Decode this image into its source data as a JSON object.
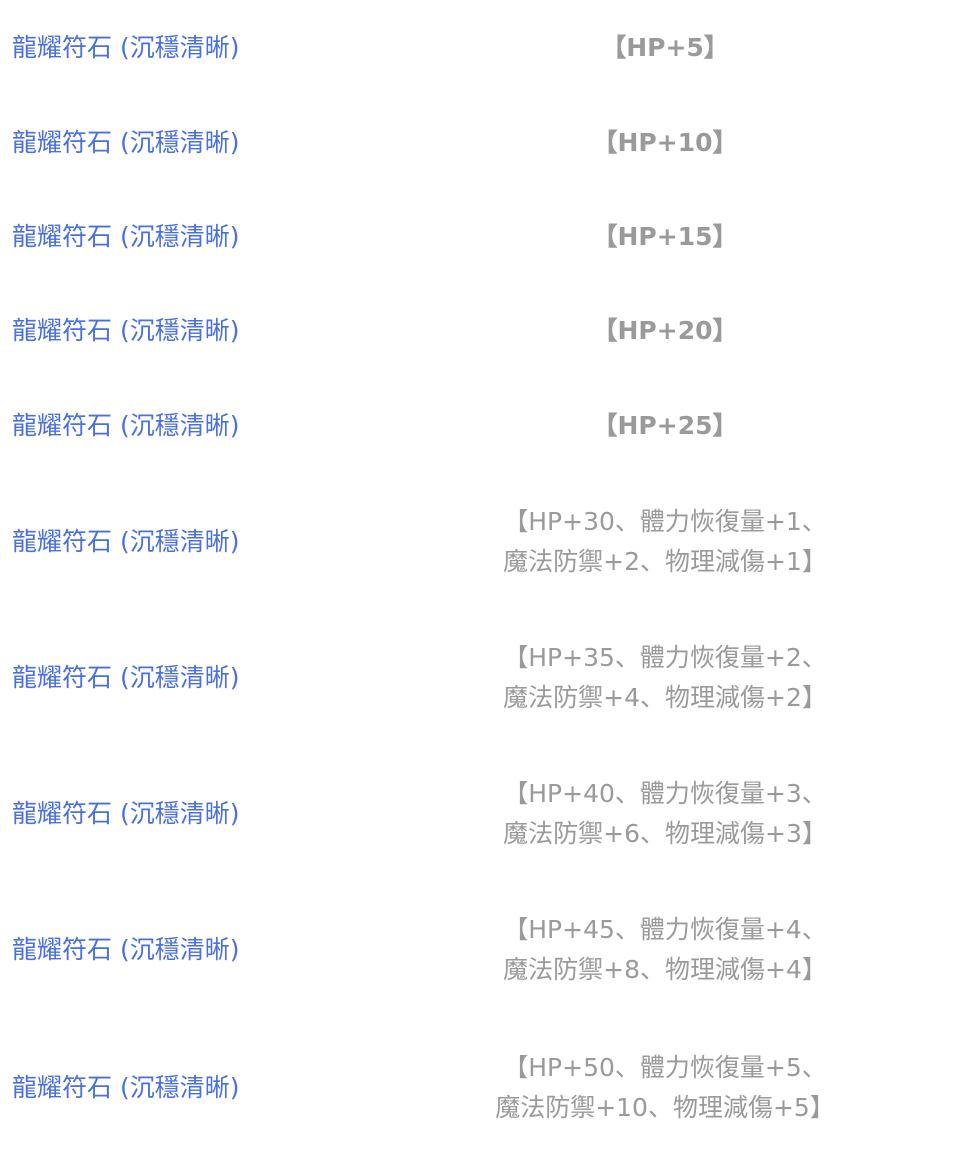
{
  "rows": [
    {
      "name": "龍耀符石 (沉穩清晰)",
      "effect_lines": [
        "【HP+5】"
      ],
      "bold": true
    },
    {
      "name": "龍耀符石 (沉穩清晰)",
      "effect_lines": [
        "【HP+10】"
      ],
      "bold": true
    },
    {
      "name": "龍耀符石 (沉穩清晰)",
      "effect_lines": [
        "【HP+15】"
      ],
      "bold": true
    },
    {
      "name": "龍耀符石 (沉穩清晰)",
      "effect_lines": [
        "【HP+20】"
      ],
      "bold": true
    },
    {
      "name": "龍耀符石 (沉穩清晰)",
      "effect_lines": [
        "【HP+25】"
      ],
      "bold": true
    },
    {
      "name": "龍耀符石 (沉穩清晰)",
      "effect_lines": [
        "【HP+30、體力恢復量+1、",
        "魔法防禦+2、物理減傷+1】"
      ],
      "bold": false
    },
    {
      "name": "龍耀符石 (沉穩清晰)",
      "effect_lines": [
        "【HP+35、體力恢復量+2、",
        "魔法防禦+4、物理減傷+2】"
      ],
      "bold": false
    },
    {
      "name": "龍耀符石 (沉穩清晰)",
      "effect_lines": [
        "【HP+40、體力恢復量+3、",
        "魔法防禦+6、物理減傷+3】"
      ],
      "bold": false
    },
    {
      "name": "龍耀符石 (沉穩清晰)",
      "effect_lines": [
        "【HP+45、體力恢復量+4、",
        "魔法防禦+8、物理減傷+4】"
      ],
      "bold": false
    },
    {
      "name": "龍耀符石 (沉穩清晰)",
      "effect_lines": [
        "【HP+50、體力恢復量+5、",
        "魔法防禦+10、物理減傷+5】"
      ],
      "bold": false
    }
  ]
}
